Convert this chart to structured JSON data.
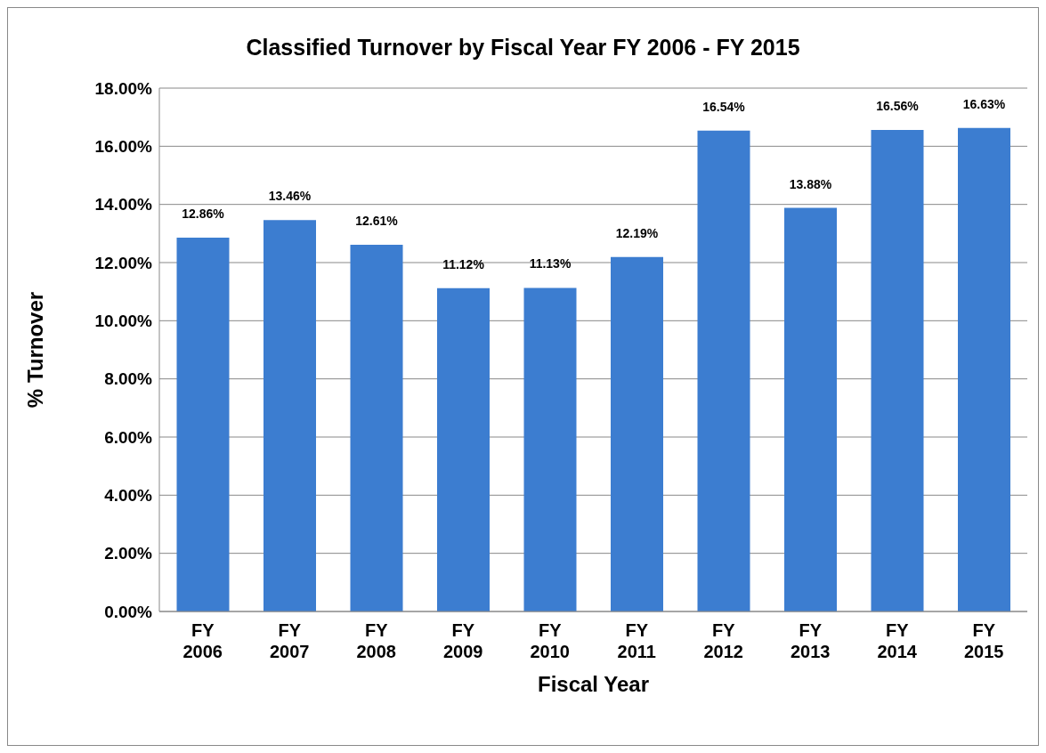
{
  "chart_data": {
    "type": "bar",
    "title": "Classified Turnover by Fiscal Year FY 2006 - FY 2015",
    "xlabel": "Fiscal Year",
    "ylabel": "% Turnover",
    "categories": [
      "FY 2006",
      "FY 2007",
      "FY 2008",
      "FY 2009",
      "FY 2010",
      "FY 2011",
      "FY 2012",
      "FY 2013",
      "FY 2014",
      "FY 2015"
    ],
    "values": [
      12.86,
      13.46,
      12.61,
      11.12,
      11.13,
      12.19,
      16.54,
      13.88,
      16.56,
      16.63
    ],
    "value_labels": [
      "12.86%",
      "13.46%",
      "12.61%",
      "11.12%",
      "11.13%",
      "12.19%",
      "16.54%",
      "13.88%",
      "16.56%",
      "16.63%"
    ],
    "color": "#3c7dd0",
    "ylim": [
      0,
      18
    ],
    "yticks": [
      {
        "value": 0,
        "label": "0.00%"
      },
      {
        "value": 2,
        "label": "2.00%"
      },
      {
        "value": 4,
        "label": "4.00%"
      },
      {
        "value": 6,
        "label": "6.00%"
      },
      {
        "value": 8,
        "label": "8.00%"
      },
      {
        "value": 10,
        "label": "10.00%"
      },
      {
        "value": 12,
        "label": "12.00%"
      },
      {
        "value": 14,
        "label": "14.00%"
      },
      {
        "value": 16,
        "label": "16.00%"
      },
      {
        "value": 18,
        "label": "18.00%"
      }
    ],
    "grid": "y",
    "legend": false
  }
}
